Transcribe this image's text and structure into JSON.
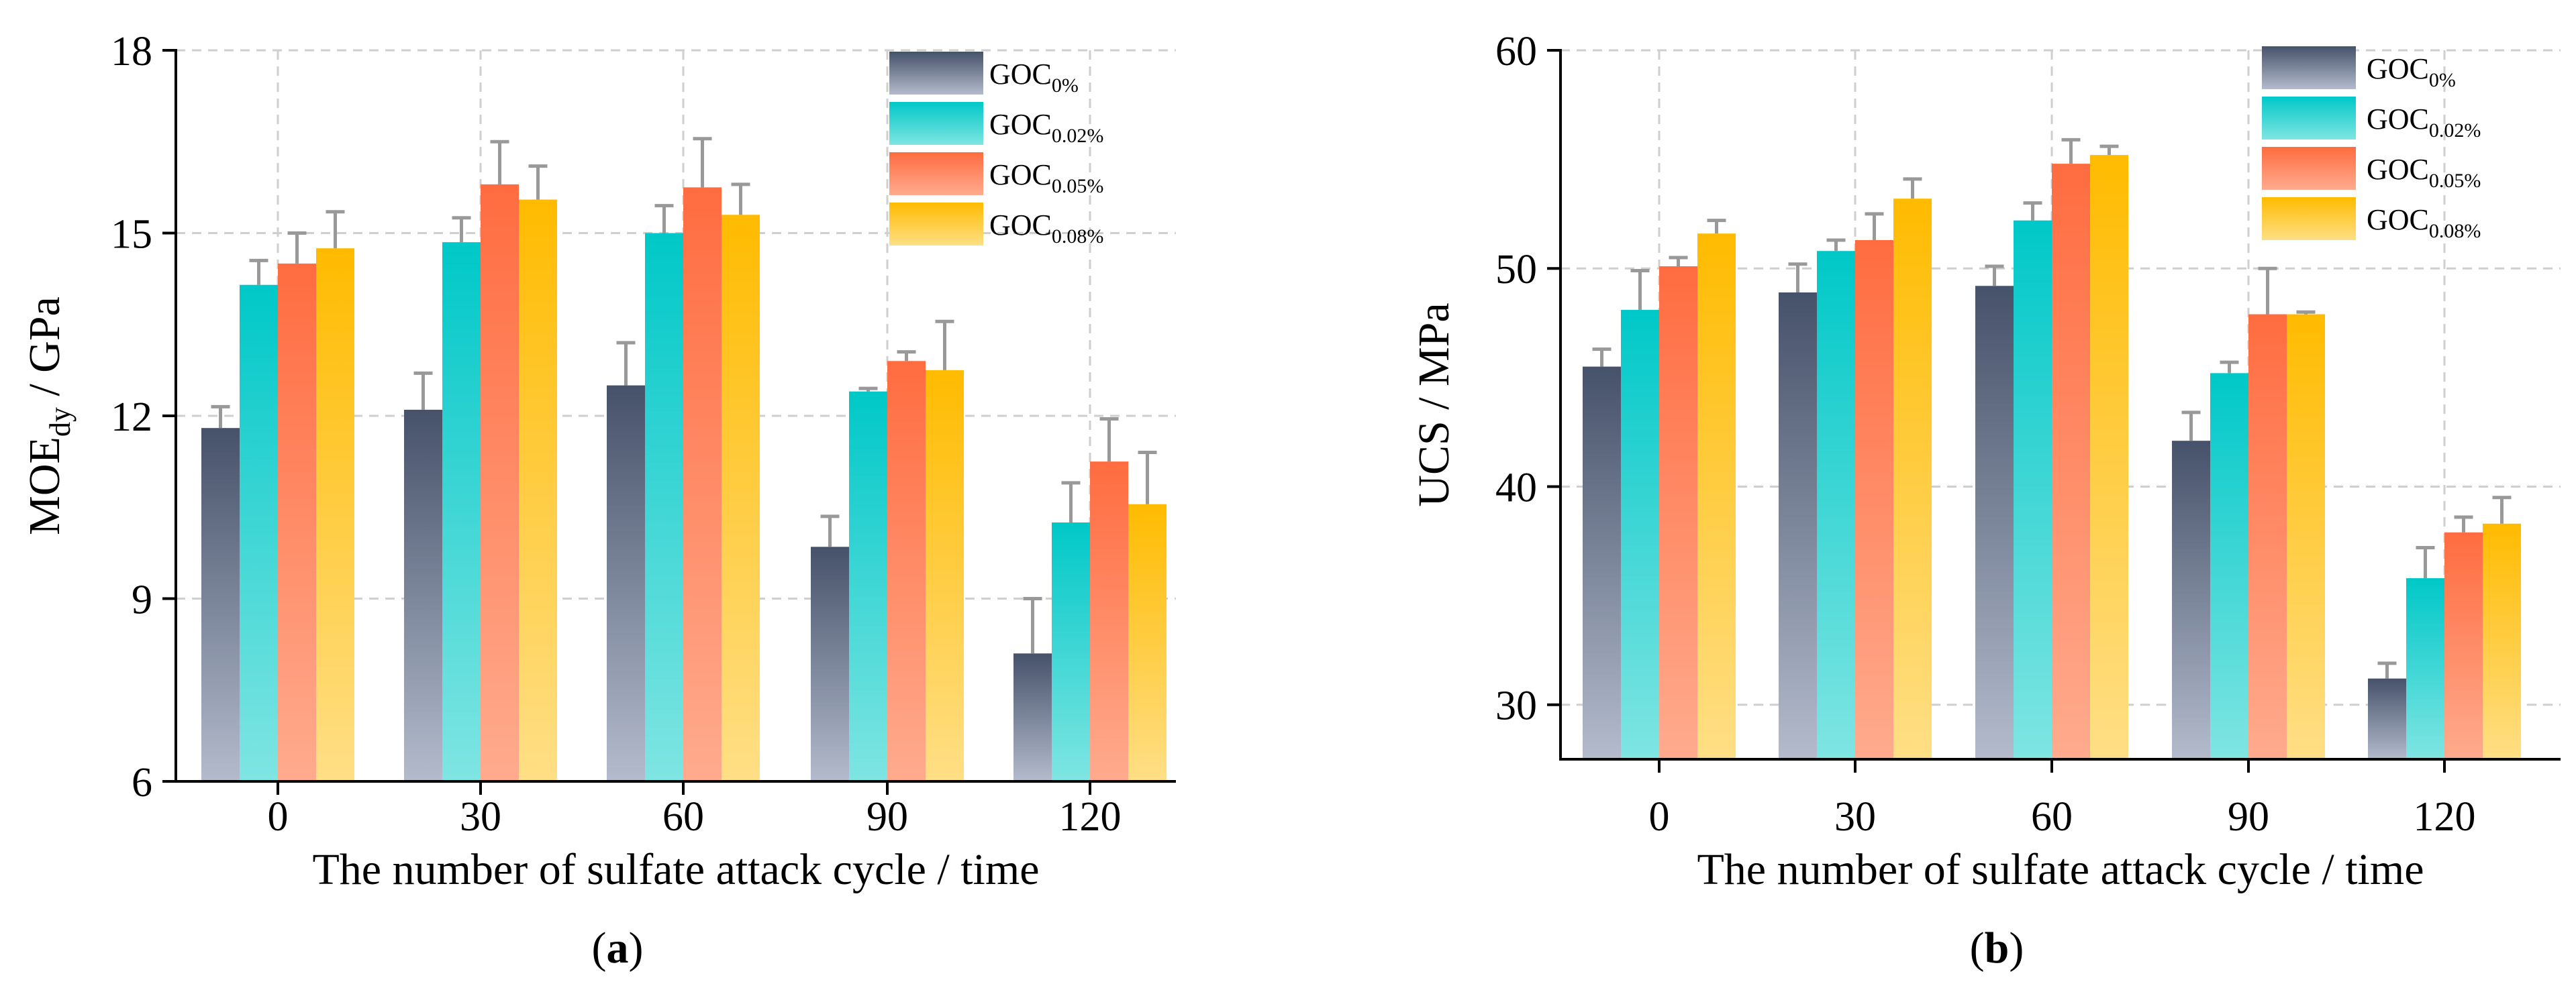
{
  "chart_data": [
    {
      "type": "bar",
      "panel_label": "a",
      "categories": [
        "0",
        "30",
        "60",
        "90",
        "120"
      ],
      "xlabel": "The number of sulfate attack cycle / time",
      "ylabel_main": "MOE",
      "ylabel_sub": "dy",
      "ylabel_unit": " / GPa",
      "ylim": [
        6,
        18
      ],
      "yticks": [
        6,
        9,
        12,
        15,
        18
      ],
      "grid": true,
      "legend_position": "top-right",
      "series": [
        {
          "name": "GOC",
          "sub": "0%",
          "values": [
            11.8,
            12.1,
            12.5,
            9.85,
            8.1
          ],
          "errors": [
            0.35,
            0.6,
            0.7,
            0.5,
            0.9
          ]
        },
        {
          "name": "GOC",
          "sub": "0.02%",
          "values": [
            14.15,
            14.85,
            15.0,
            12.4,
            10.25
          ],
          "errors": [
            0.4,
            0.4,
            0.45,
            0.05,
            0.65
          ]
        },
        {
          "name": "GOC",
          "sub": "0.05%",
          "values": [
            14.5,
            15.8,
            15.75,
            12.9,
            11.25
          ],
          "errors": [
            0.5,
            0.7,
            0.8,
            0.15,
            0.7
          ]
        },
        {
          "name": "GOC",
          "sub": "0.08%",
          "values": [
            14.75,
            15.55,
            15.3,
            12.75,
            10.55
          ],
          "errors": [
            0.6,
            0.55,
            0.5,
            0.8,
            0.85
          ]
        }
      ]
    },
    {
      "type": "bar",
      "panel_label": "b",
      "categories": [
        "0",
        "30",
        "60",
        "90",
        "120"
      ],
      "xlabel": "The number of sulfate attack cycle / time",
      "ylabel_main": "UCS / MPa",
      "ylabel_sub": "",
      "ylabel_unit": "",
      "ylim": [
        27.5,
        60
      ],
      "yticks": [
        30,
        40,
        50,
        60
      ],
      "grid": true,
      "legend_position": "top-right",
      "series": [
        {
          "name": "GOC",
          "sub": "0%",
          "values": [
            45.5,
            48.9,
            49.2,
            42.1,
            31.2
          ],
          "errors": [
            0.8,
            1.3,
            0.9,
            1.3,
            0.7
          ]
        },
        {
          "name": "GOC",
          "sub": "0.02%",
          "values": [
            48.1,
            50.8,
            52.2,
            45.2,
            35.8
          ],
          "errors": [
            1.8,
            0.5,
            0.8,
            0.5,
            1.4
          ]
        },
        {
          "name": "GOC",
          "sub": "0.05%",
          "values": [
            50.1,
            51.3,
            54.8,
            47.9,
            37.9
          ],
          "errors": [
            0.4,
            1.2,
            1.1,
            2.1,
            0.7
          ]
        },
        {
          "name": "GOC",
          "sub": "0.08%",
          "values": [
            51.6,
            53.2,
            55.2,
            47.9,
            38.3
          ],
          "errors": [
            0.6,
            0.9,
            0.4,
            0.1,
            1.2
          ]
        }
      ]
    }
  ],
  "series_colors": {
    "top": [
      "#46526a",
      "#00c8c8",
      "#ff6c40",
      "#ffbb00"
    ],
    "bottom": [
      "#b3bbcc",
      "#7fe5e2",
      "#ffab8e",
      "#ffdf86"
    ]
  },
  "error_bar_color": "#999999"
}
